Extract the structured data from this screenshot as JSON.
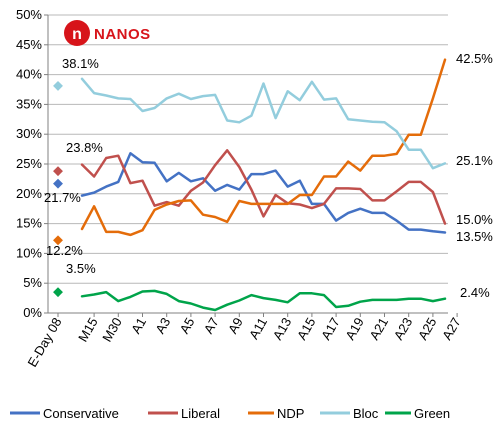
{
  "chart_data": {
    "type": "line",
    "title": "",
    "xlabel": "",
    "ylabel": "",
    "ylim": [
      0,
      50
    ],
    "yticks": [
      "0%",
      "5%",
      "10%",
      "15%",
      "20%",
      "25%",
      "30%",
      "35%",
      "40%",
      "45%",
      "50%"
    ],
    "x_ticklabels": [
      "E-Day 08",
      "M15",
      "M30",
      "A1",
      "A3",
      "A5",
      "A7",
      "A9",
      "A11",
      "A13",
      "A15",
      "A17",
      "A19",
      "A21",
      "A23",
      "A25",
      "A27"
    ],
    "legend_position": "bottom",
    "series": [
      {
        "name": "Conservative",
        "color": "#4472c4",
        "eday_value": 21.7,
        "eday_label": "21.7%",
        "end_label": "13.5%",
        "values": [
          19.7,
          20.2,
          21.2,
          22.0,
          26.8,
          25.3,
          25.2,
          22.1,
          23.5,
          22.1,
          22.6,
          20.5,
          21.5,
          20.7,
          23.3,
          23.3,
          23.9,
          21.2,
          22.2,
          18.3,
          18.3,
          15.5,
          16.8,
          17.5,
          16.8,
          16.8,
          15.5,
          14.0,
          14.0,
          13.7,
          13.5
        ]
      },
      {
        "name": "Liberal",
        "color": "#c0504d",
        "eday_value": 23.8,
        "eday_label": "23.8%",
        "end_label": "15.0%",
        "values": [
          24.9,
          22.9,
          26.0,
          26.4,
          21.8,
          22.2,
          18.0,
          18.6,
          18.0,
          20.5,
          21.9,
          24.8,
          27.3,
          24.5,
          20.7,
          16.2,
          19.8,
          18.4,
          18.2,
          17.6,
          18.3,
          20.9,
          20.9,
          20.8,
          18.9,
          18.9,
          20.4,
          22.0,
          22.0,
          20.3,
          15.0
        ]
      },
      {
        "name": "NDP",
        "color": "#e46c0a",
        "eday_value": 12.2,
        "eday_label": "12.2%",
        "end_label": "42.5%",
        "values": [
          14.1,
          17.9,
          13.6,
          13.6,
          13.1,
          13.9,
          17.3,
          18.2,
          18.8,
          18.9,
          16.5,
          16.1,
          15.3,
          18.8,
          18.3,
          18.3,
          18.3,
          18.3,
          19.8,
          19.8,
          22.9,
          22.9,
          25.4,
          23.9,
          26.4,
          26.4,
          26.7,
          29.9,
          29.9,
          36.0,
          42.5
        ]
      },
      {
        "name": "Bloc",
        "color": "#93cddd",
        "eday_value": 38.1,
        "eday_label": "38.1%",
        "end_label": "25.1%",
        "values": [
          39.3,
          36.9,
          36.5,
          36.0,
          35.9,
          33.9,
          34.4,
          36.0,
          36.8,
          35.9,
          36.4,
          36.6,
          32.3,
          32.0,
          33.1,
          38.5,
          32.7,
          37.2,
          35.7,
          38.8,
          35.8,
          36.0,
          32.5,
          32.3,
          32.1,
          32.0,
          30.5,
          27.4,
          27.4,
          24.3,
          25.1
        ]
      },
      {
        "name": "Green",
        "color": "#00a44a",
        "eday_value": 3.5,
        "eday_label": "3.5%",
        "end_label": "2.4%",
        "values": [
          2.8,
          3.1,
          3.5,
          2.0,
          2.7,
          3.6,
          3.7,
          3.2,
          2.0,
          1.6,
          0.9,
          0.5,
          1.4,
          2.1,
          3.0,
          2.5,
          2.2,
          1.8,
          3.3,
          3.3,
          3.0,
          1.0,
          1.2,
          1.9,
          2.2,
          2.2,
          2.2,
          2.4,
          2.4,
          2.0,
          2.4
        ]
      }
    ]
  },
  "logo": {
    "text": "NANOS",
    "monogram": "n"
  }
}
